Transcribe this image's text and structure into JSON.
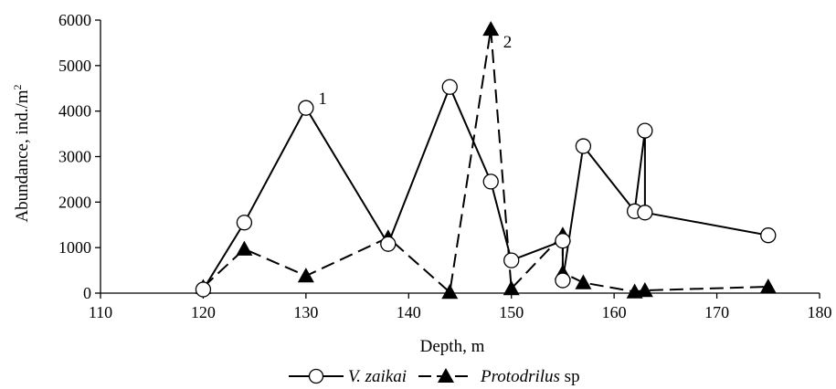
{
  "chart_data": {
    "type": "line",
    "title": "",
    "xlabel": "Depth, m",
    "ylabel_main": "Abundance, ind./m",
    "ylabel_sup": "2",
    "xlim": [
      110,
      180
    ],
    "ylim": [
      0,
      6000
    ],
    "x_ticks": [
      110,
      120,
      130,
      140,
      150,
      160,
      170,
      180
    ],
    "y_ticks": [
      0,
      1000,
      2000,
      3000,
      4000,
      5000,
      6000
    ],
    "grid": false,
    "legend_position": "bottom-center",
    "series": [
      {
        "key": "vz",
        "name_italic": "V. zaikai",
        "name_normal": "",
        "marker": "circle",
        "line": "solid",
        "color": "#000000",
        "points": [
          [
            120,
            80
          ],
          [
            124,
            1550
          ],
          [
            130,
            4070
          ],
          [
            138,
            1080
          ],
          [
            144,
            4530
          ],
          [
            148,
            2450
          ],
          [
            150,
            720
          ],
          [
            155,
            1150
          ],
          [
            155,
            280
          ],
          [
            157,
            3230
          ],
          [
            162,
            1800
          ],
          [
            163,
            3570
          ],
          [
            163,
            1770
          ],
          [
            175,
            1270
          ]
        ]
      },
      {
        "key": "pd",
        "name_italic": "Protodrilus",
        "name_normal": " sp",
        "marker": "triangle",
        "line": "dashed",
        "color": "#000000",
        "points": [
          [
            120,
            130
          ],
          [
            124,
            970
          ],
          [
            130,
            380
          ],
          [
            138,
            1220
          ],
          [
            144,
            20
          ],
          [
            148,
            5800
          ],
          [
            150,
            100
          ],
          [
            155,
            1280
          ],
          [
            155,
            450
          ],
          [
            157,
            230
          ],
          [
            162,
            30
          ],
          [
            163,
            60
          ],
          [
            175,
            140
          ]
        ]
      }
    ],
    "annotations": [
      {
        "text": "1",
        "x": 131.2,
        "y": 4150
      },
      {
        "text": "2",
        "x": 149.2,
        "y": 5400
      }
    ]
  }
}
